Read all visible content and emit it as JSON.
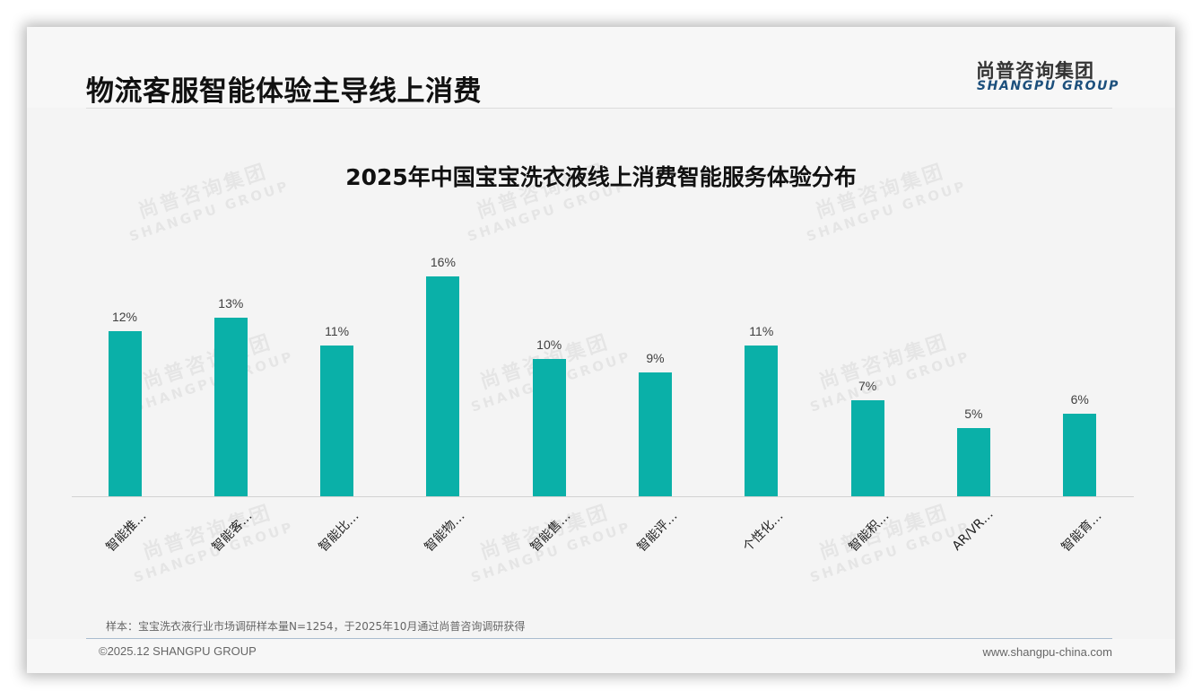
{
  "header": {
    "title": "物流客服智能体验主导线上消费",
    "logo_cn": "尚普咨询集团",
    "logo_en": "SHANGPU GROUP"
  },
  "watermark": {
    "cn": "尚普咨询集团",
    "en": "SHANGPU GROUP"
  },
  "chart_data": {
    "type": "bar",
    "title": "2025年中国宝宝洗衣液线上消费智能服务体验分布",
    "xlabel": "",
    "ylabel": "",
    "categories": [
      "智能推…",
      "智能客…",
      "智能比…",
      "智能物…",
      "智能售…",
      "智能评…",
      "个性化…",
      "智能积…",
      "AR/VR…",
      "智能育…"
    ],
    "values": [
      12,
      13,
      11,
      16,
      10,
      9,
      11,
      7,
      5,
      6
    ],
    "value_labels": [
      "12%",
      "13%",
      "11%",
      "16%",
      "10%",
      "9%",
      "11%",
      "7%",
      "5%",
      "6%"
    ],
    "unit": "%",
    "ylim": [
      0,
      16
    ],
    "grid": false,
    "legend": "none",
    "bar_color": "#0ab0a8"
  },
  "footer": {
    "note": "样本：宝宝洗衣液行业市场调研样本量N=1254，于2025年10月通过尚普咨询调研获得",
    "copyright": "©2025.12 SHANGPU GROUP",
    "url": "www.shangpu-china.com"
  }
}
